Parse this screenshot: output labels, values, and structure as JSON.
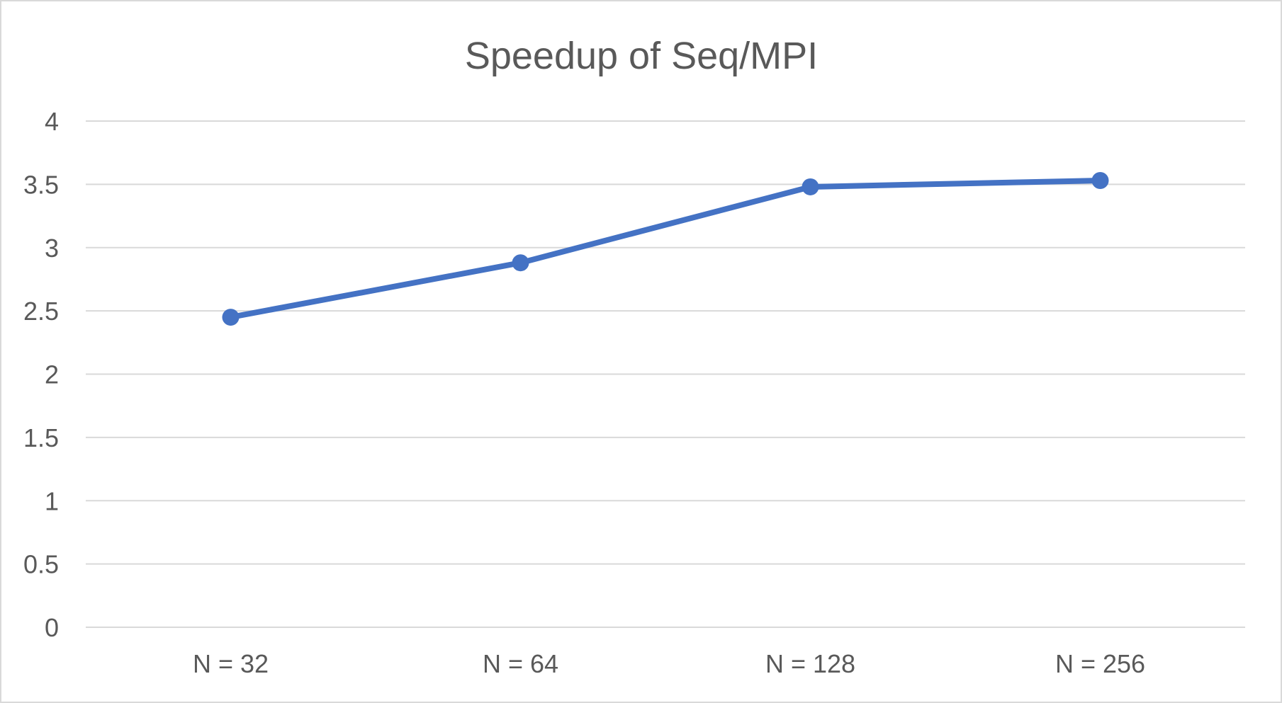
{
  "chart_data": {
    "type": "line",
    "title": "Speedup of Seq/MPI",
    "xlabel": "",
    "ylabel": "",
    "categories": [
      "N = 32",
      "N = 64",
      "N = 128",
      "N = 256"
    ],
    "series": [
      {
        "values": [
          2.45,
          2.88,
          3.48,
          3.53
        ],
        "color": "#4472C4"
      }
    ],
    "ylim": [
      0,
      4
    ],
    "yticks": [
      "0",
      "0.5",
      "1",
      "1.5",
      "2",
      "2.5",
      "3",
      "3.5",
      "4"
    ],
    "ytick_values": [
      0,
      0.5,
      1,
      1.5,
      2,
      2.5,
      3,
      3.5,
      4
    ],
    "grid": true,
    "legend": "none",
    "gridline_color": "#d9d9d9",
    "text_color": "#595959"
  }
}
